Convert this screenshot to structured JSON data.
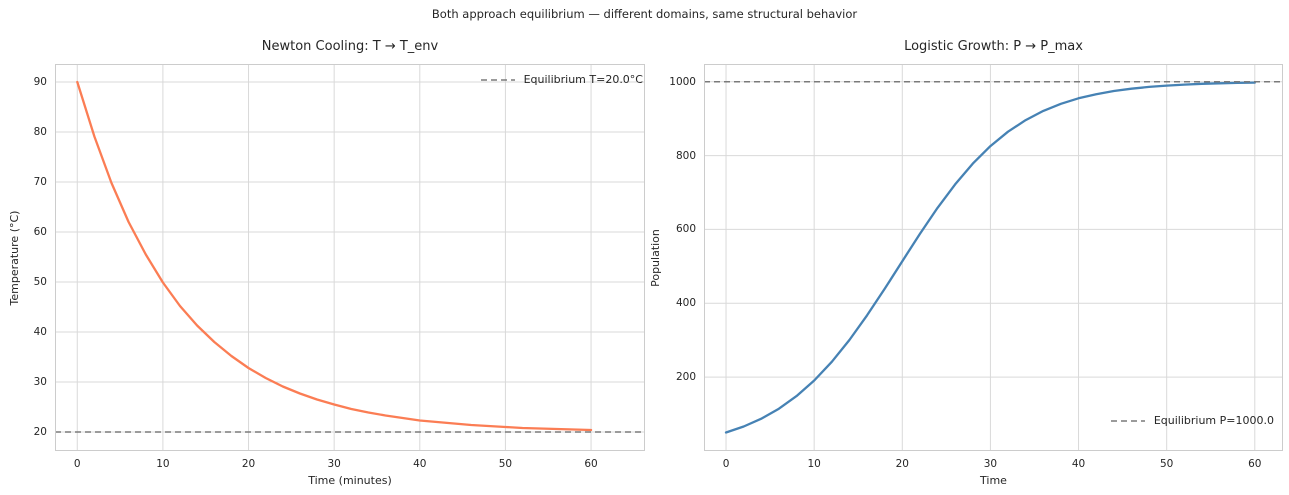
{
  "figure": {
    "suptitle": "Both approach equilibrium — different domains, same structural behavior"
  },
  "chart_data": [
    {
      "type": "line",
      "title": "Newton Cooling: T → T_env",
      "xlabel": "Time (minutes)",
      "ylabel": "Temperature (°C)",
      "xticks": [
        0,
        10,
        20,
        30,
        40,
        50,
        60
      ],
      "yticks": [
        20,
        30,
        40,
        50,
        60,
        70,
        80,
        90
      ],
      "xlim": [
        -2.6,
        66.3
      ],
      "ylim": [
        16.2,
        93.6
      ],
      "grid": true,
      "legend_position": "upper right",
      "series": [
        {
          "color": "#fb7d54",
          "x": [
            0,
            2,
            4,
            6,
            8,
            10,
            12,
            14,
            16,
            18,
            20,
            22,
            24,
            26,
            28,
            30,
            32,
            34,
            36,
            38,
            40,
            42,
            44,
            46,
            48,
            50,
            52,
            54,
            56,
            58,
            60
          ],
          "y": [
            90.0,
            79.1,
            69.8,
            62.0,
            55.5,
            49.9,
            45.2,
            41.3,
            38.0,
            35.2,
            32.8,
            30.8,
            29.1,
            27.7,
            26.5,
            25.5,
            24.6,
            23.9,
            23.3,
            22.8,
            22.3,
            22.0,
            21.7,
            21.4,
            21.2,
            21.0,
            20.8,
            20.7,
            20.6,
            20.5,
            20.4
          ]
        }
      ],
      "equilibrium": {
        "value": 20.0,
        "label": "Equilibrium T=20.0°C",
        "color": "#7a7a7a",
        "linestyle": "dashed"
      }
    },
    {
      "type": "line",
      "title": "Logistic Growth: P → P_max",
      "xlabel": "Time",
      "ylabel": "Population",
      "xticks": [
        0,
        10,
        20,
        30,
        40,
        50,
        60
      ],
      "yticks": [
        200,
        400,
        600,
        800,
        1000
      ],
      "xlim": [
        -2.5,
        63.2
      ],
      "ylim": [
        0,
        1048
      ],
      "grid": true,
      "legend_position": "lower right",
      "series": [
        {
          "color": "#4682b4",
          "x": [
            0,
            2,
            4,
            6,
            8,
            10,
            12,
            14,
            16,
            18,
            20,
            22,
            24,
            26,
            28,
            30,
            32,
            34,
            36,
            38,
            40,
            42,
            44,
            46,
            48,
            50,
            52,
            54,
            56,
            58,
            60
          ],
          "y": [
            50.0,
            66.3,
            87.5,
            114.6,
            148.8,
            190.9,
            241.5,
            300.6,
            367.3,
            439.2,
            513.9,
            587.9,
            658.3,
            722.2,
            778.3,
            825.7,
            864.8,
            896.2,
            921.0,
            940.2,
            955.0,
            966.3,
            974.8,
            981.2,
            986.0,
            989.6,
            992.3,
            994.3,
            995.7,
            996.8,
            997.7
          ]
        }
      ],
      "equilibrium": {
        "value": 1000.0,
        "label": "Equilibrium P=1000.0",
        "color": "#7a7a7a",
        "linestyle": "dashed"
      }
    }
  ]
}
